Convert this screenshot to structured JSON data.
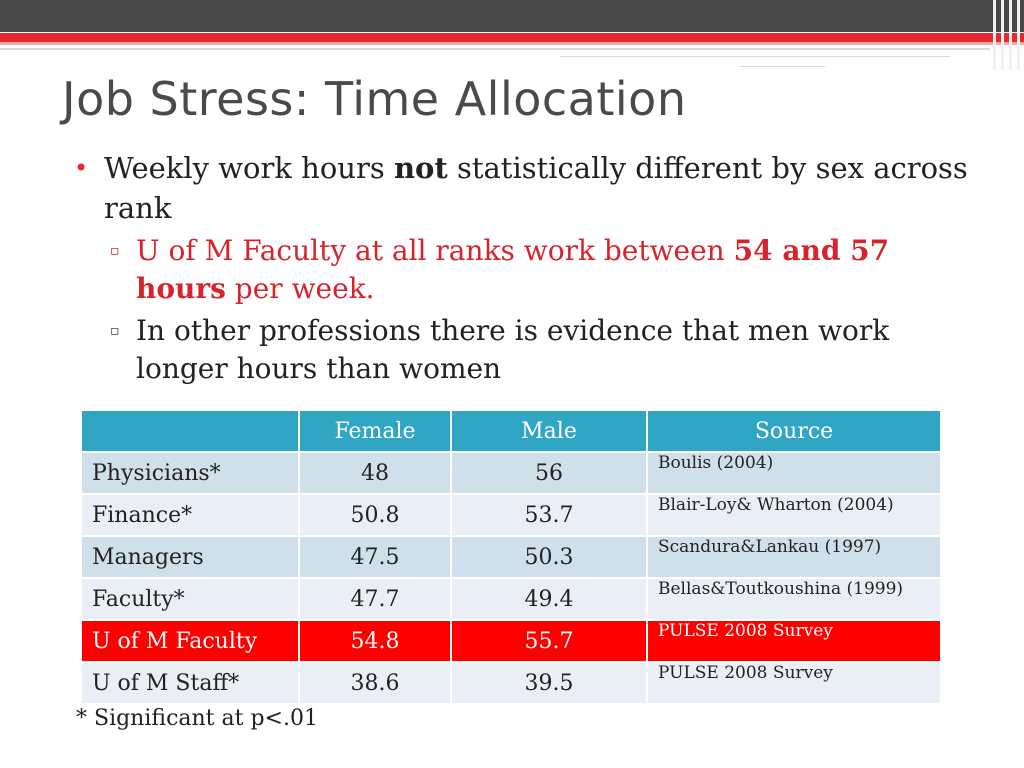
{
  "slide": {
    "title": "Job Stress: Time Allocation",
    "bullet1": {
      "text_before": "Weekly work hours ",
      "text_bold": "not",
      "text_after": " statistically different by sex across rank"
    },
    "sub1": {
      "text_before": "U of M Faculty at all ranks work between ",
      "text_bold": "54 and 57 hours",
      "text_after": " per week."
    },
    "sub2": {
      "text": "In other professions there is evidence that men work longer hours than women"
    },
    "bullet_glyph": "•",
    "sub_glyph": "▫",
    "footnote": "* Significant at p<.01"
  },
  "table": {
    "headers": [
      "",
      "Female",
      "Male",
      "Source"
    ],
    "rows": [
      {
        "group": "Physicians*",
        "female": "48",
        "male": "56",
        "source": "Boulis (2004)"
      },
      {
        "group": "Finance*",
        "female": "50.8",
        "male": "53.7",
        "source": "Blair-Loy& Wharton (2004)"
      },
      {
        "group": "Managers",
        "female": "47.5",
        "male": "50.3",
        "source": "Scandura&Lankau (1997)"
      },
      {
        "group": "Faculty*",
        "female": "47.7",
        "male": "49.4",
        "source": "Bellas&Toutkoushina (1999)"
      },
      {
        "group": "U of M Faculty",
        "female": "54.8",
        "male": "55.7",
        "source": "PULSE 2008 Survey"
      },
      {
        "group": "U of M Staff*",
        "female": "38.6",
        "male": "39.5",
        "source": "PULSE 2008 Survey"
      }
    ],
    "highlight_row_color": "#ff0000",
    "header_color": "#31a6c4"
  },
  "colors": {
    "accent_red": "#e8282f",
    "title_gray": "#4a4a4a",
    "top_bar": "#474747"
  }
}
